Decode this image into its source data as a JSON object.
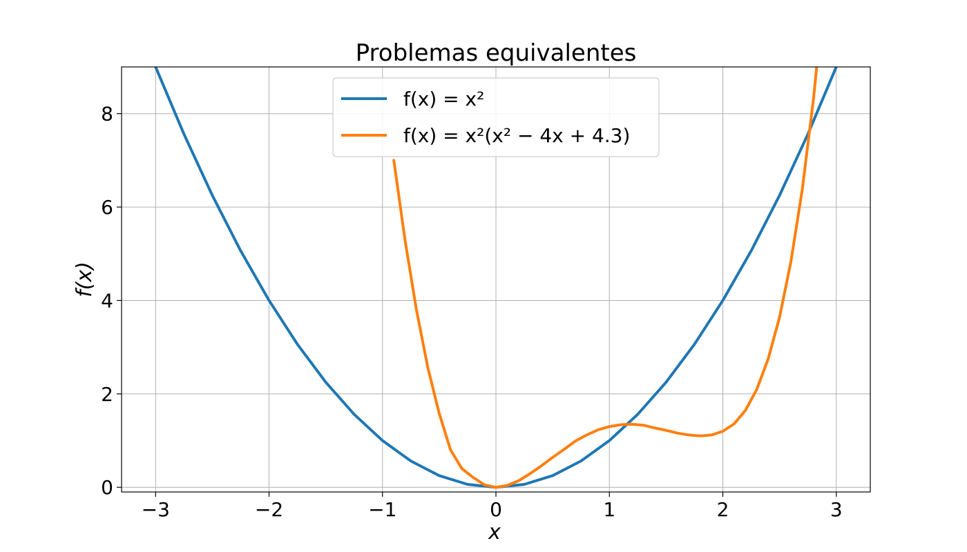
{
  "chart_data": {
    "type": "line",
    "title": "Problemas equivalentes",
    "xlabel": "x",
    "ylabel": "f(x)",
    "xlim": [
      -3.3,
      3.3
    ],
    "ylim": [
      -0.1,
      9.0
    ],
    "xticks": [
      -3,
      -2,
      -1,
      0,
      1,
      2,
      3
    ],
    "xtick_labels": [
      "−3",
      "−2",
      "−1",
      "0",
      "1",
      "2",
      "3"
    ],
    "yticks": [
      0,
      2,
      4,
      6,
      8
    ],
    "ytick_labels": [
      "0",
      "2",
      "4",
      "6",
      "8"
    ],
    "grid": true,
    "legend_position": "top-center",
    "series": [
      {
        "name": "f(x) = x²",
        "color": "#1f77b4",
        "x": [
          -3.0,
          -2.75,
          -2.5,
          -2.25,
          -2.0,
          -1.75,
          -1.5,
          -1.25,
          -1.0,
          -0.75,
          -0.5,
          -0.25,
          0.0,
          0.25,
          0.5,
          0.75,
          1.0,
          1.25,
          1.5,
          1.75,
          2.0,
          2.25,
          2.5,
          2.75,
          3.0
        ],
        "y": [
          9.0,
          7.5625,
          6.25,
          5.0625,
          4.0,
          3.0625,
          2.25,
          1.5625,
          1.0,
          0.5625,
          0.25,
          0.0625,
          0.0,
          0.0625,
          0.25,
          0.5625,
          1.0,
          1.5625,
          2.25,
          3.0625,
          4.0,
          5.0625,
          6.25,
          7.5625,
          9.0
        ]
      },
      {
        "name": "f(x) = x²(x² − 4x + 4.3)",
        "color": "#ff7f0e",
        "x": [
          -0.9,
          -0.8,
          -0.7,
          -0.6,
          -0.5,
          -0.4,
          -0.3,
          -0.2,
          -0.1,
          0.0,
          0.1,
          0.2,
          0.3,
          0.4,
          0.5,
          0.6,
          0.7,
          0.8,
          0.9,
          1.0,
          1.1,
          1.2,
          1.3,
          1.4,
          1.5,
          1.6,
          1.7,
          1.8,
          1.9,
          2.0,
          2.1,
          2.2,
          2.3,
          2.4,
          2.5,
          2.6,
          2.7,
          2.8,
          2.9
        ],
        "y": [
          7.0,
          5.27,
          3.79,
          2.56,
          1.58,
          0.8,
          0.4,
          0.21,
          0.05,
          0.0,
          0.04,
          0.14,
          0.29,
          0.46,
          0.64,
          0.81,
          0.99,
          1.12,
          1.23,
          1.3,
          1.34,
          1.35,
          1.33,
          1.27,
          1.22,
          1.16,
          1.12,
          1.1,
          1.12,
          1.2,
          1.36,
          1.65,
          2.1,
          2.75,
          3.64,
          4.83,
          6.37,
          8.33,
          10.77
        ]
      }
    ]
  }
}
